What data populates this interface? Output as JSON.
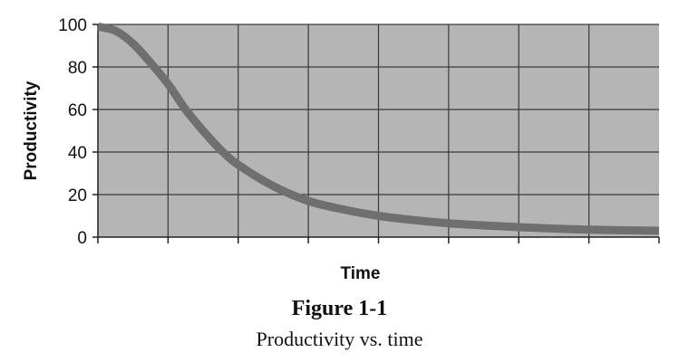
{
  "chart_data": {
    "type": "line",
    "xlabel": "Time",
    "ylabel": "Productivity",
    "ylim": [
      0,
      100
    ],
    "yticks": [
      "0",
      "20",
      "40",
      "60",
      "80",
      "100"
    ],
    "x_ticks_labeled": false,
    "x_divisions": 8,
    "grid": true,
    "legend": "none",
    "series": [
      {
        "x": [
          0,
          0.25,
          0.5,
          0.75,
          1,
          1.25,
          1.5,
          1.75,
          2,
          2.5,
          3,
          3.5,
          4,
          4.5,
          5,
          5.5,
          6,
          6.5,
          7,
          7.5,
          8
        ],
        "values": [
          99,
          97,
          91,
          82,
          72,
          60,
          50,
          41,
          34,
          24,
          17,
          13,
          10,
          8,
          6.5,
          5.5,
          4.7,
          4,
          3.5,
          3.2,
          3
        ]
      }
    ],
    "colors": {
      "plot_background": "#b5b5b5",
      "gridline": "#3a3a3a",
      "series_line": "#6f6f6f"
    }
  },
  "caption": {
    "figure_number": "Figure 1-1",
    "subtitle": "Productivity vs. time"
  }
}
